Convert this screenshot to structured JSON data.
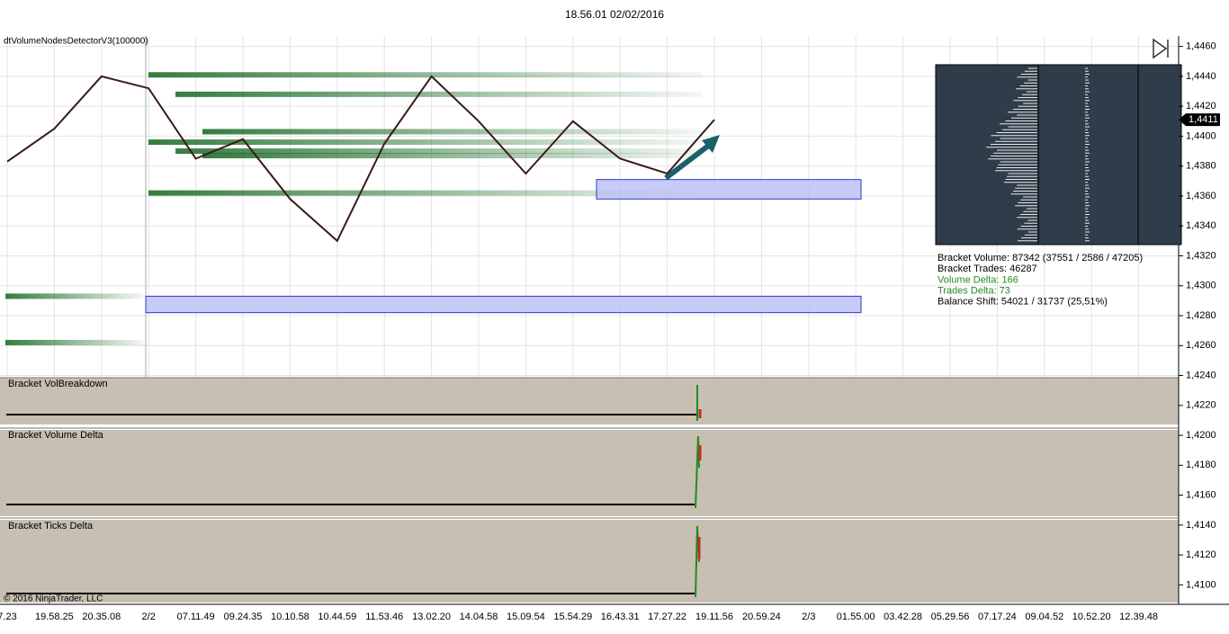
{
  "chart_data": {
    "type": "line",
    "title": "18.56.01 02/02/2016",
    "indicator": "dtVolumeNodesDetectorV3(100000)",
    "categories": [
      "7.23",
      "19.58.25",
      "20.35.08",
      "2/2",
      "07.11.49",
      "09.24.35",
      "10.10.58",
      "10.44.59",
      "11.53.46",
      "13.02.20",
      "14.04.58",
      "15.09.54",
      "15.54.29",
      "16.43.31",
      "17.27.22",
      "19.11.56",
      "20.59.24",
      "2/3",
      "01.55.00",
      "03.42.28",
      "05.29.56",
      "07.17.24",
      "09.04.52",
      "10.52.20",
      "12.39.48"
    ],
    "series": [
      {
        "color": "#3a1a1a",
        "values": [
          1.4383,
          1.4405,
          1.444,
          1.4432,
          1.4385,
          1.4398,
          1.4358,
          1.433,
          1.4395,
          1.444,
          1.441,
          1.4375,
          1.441,
          1.4385,
          1.4375,
          1.4411,
          null,
          null,
          null,
          null,
          null,
          null,
          null,
          null,
          null
        ]
      }
    ],
    "ylim": [
      1.4087,
      1.4467
    ],
    "yticks": [
      {
        "value": 1.446,
        "label": "1,4460"
      },
      {
        "value": 1.444,
        "label": "1,4440"
      },
      {
        "value": 1.442,
        "label": "1,4420"
      },
      {
        "value": 1.44,
        "label": "1,4400"
      },
      {
        "value": 1.438,
        "label": "1,4380"
      },
      {
        "value": 1.436,
        "label": "1,4360"
      },
      {
        "value": 1.434,
        "label": "1,4340"
      },
      {
        "value": 1.432,
        "label": "1,4320"
      },
      {
        "value": 1.43,
        "label": "1,4300"
      },
      {
        "value": 1.428,
        "label": "1,4280"
      },
      {
        "value": 1.426,
        "label": "1,4260"
      },
      {
        "value": 1.424,
        "label": "1,4240"
      },
      {
        "value": 1.422,
        "label": "1,4220"
      },
      {
        "value": 1.42,
        "label": "1,4200"
      },
      {
        "value": 1.418,
        "label": "1,4180"
      },
      {
        "value": 1.416,
        "label": "1,4160"
      },
      {
        "value": 1.414,
        "label": "1,4140"
      },
      {
        "value": 1.412,
        "label": "1,4120"
      },
      {
        "value": 1.41,
        "label": "1,4100"
      }
    ],
    "last_price": {
      "value": 1.4411,
      "label": "1,4411"
    },
    "zones": [
      {
        "low": 1.4358,
        "high": 1.4371
      },
      {
        "low": 1.4282,
        "high": 1.4293
      }
    ],
    "volume_nodes": [
      1.4441,
      1.4428,
      1.4403,
      1.4396,
      1.439,
      1.4387,
      1.4362,
      1.4293,
      1.4262
    ],
    "grid": true,
    "panels": [
      "Bracket VolBreakdown",
      "Bracket Volume Delta",
      "Bracket Ticks Delta"
    ],
    "stats": [
      {
        "text": "Bracket Volume: 87342 (37551 / 2586 / 47205)",
        "color": "#000000"
      },
      {
        "text": "Bracket Trades: 46287",
        "color": "#000000"
      },
      {
        "text": "Volume Delta: 166",
        "color": "#228b22"
      },
      {
        "text": "Trades Delta: 73",
        "color": "#228b22"
      },
      {
        "text": "Balance Shift: 54021 / 31737 (25,51%)",
        "color": "#000000"
      }
    ],
    "copyright": "© 2016 NinjaTrader, LLC"
  }
}
